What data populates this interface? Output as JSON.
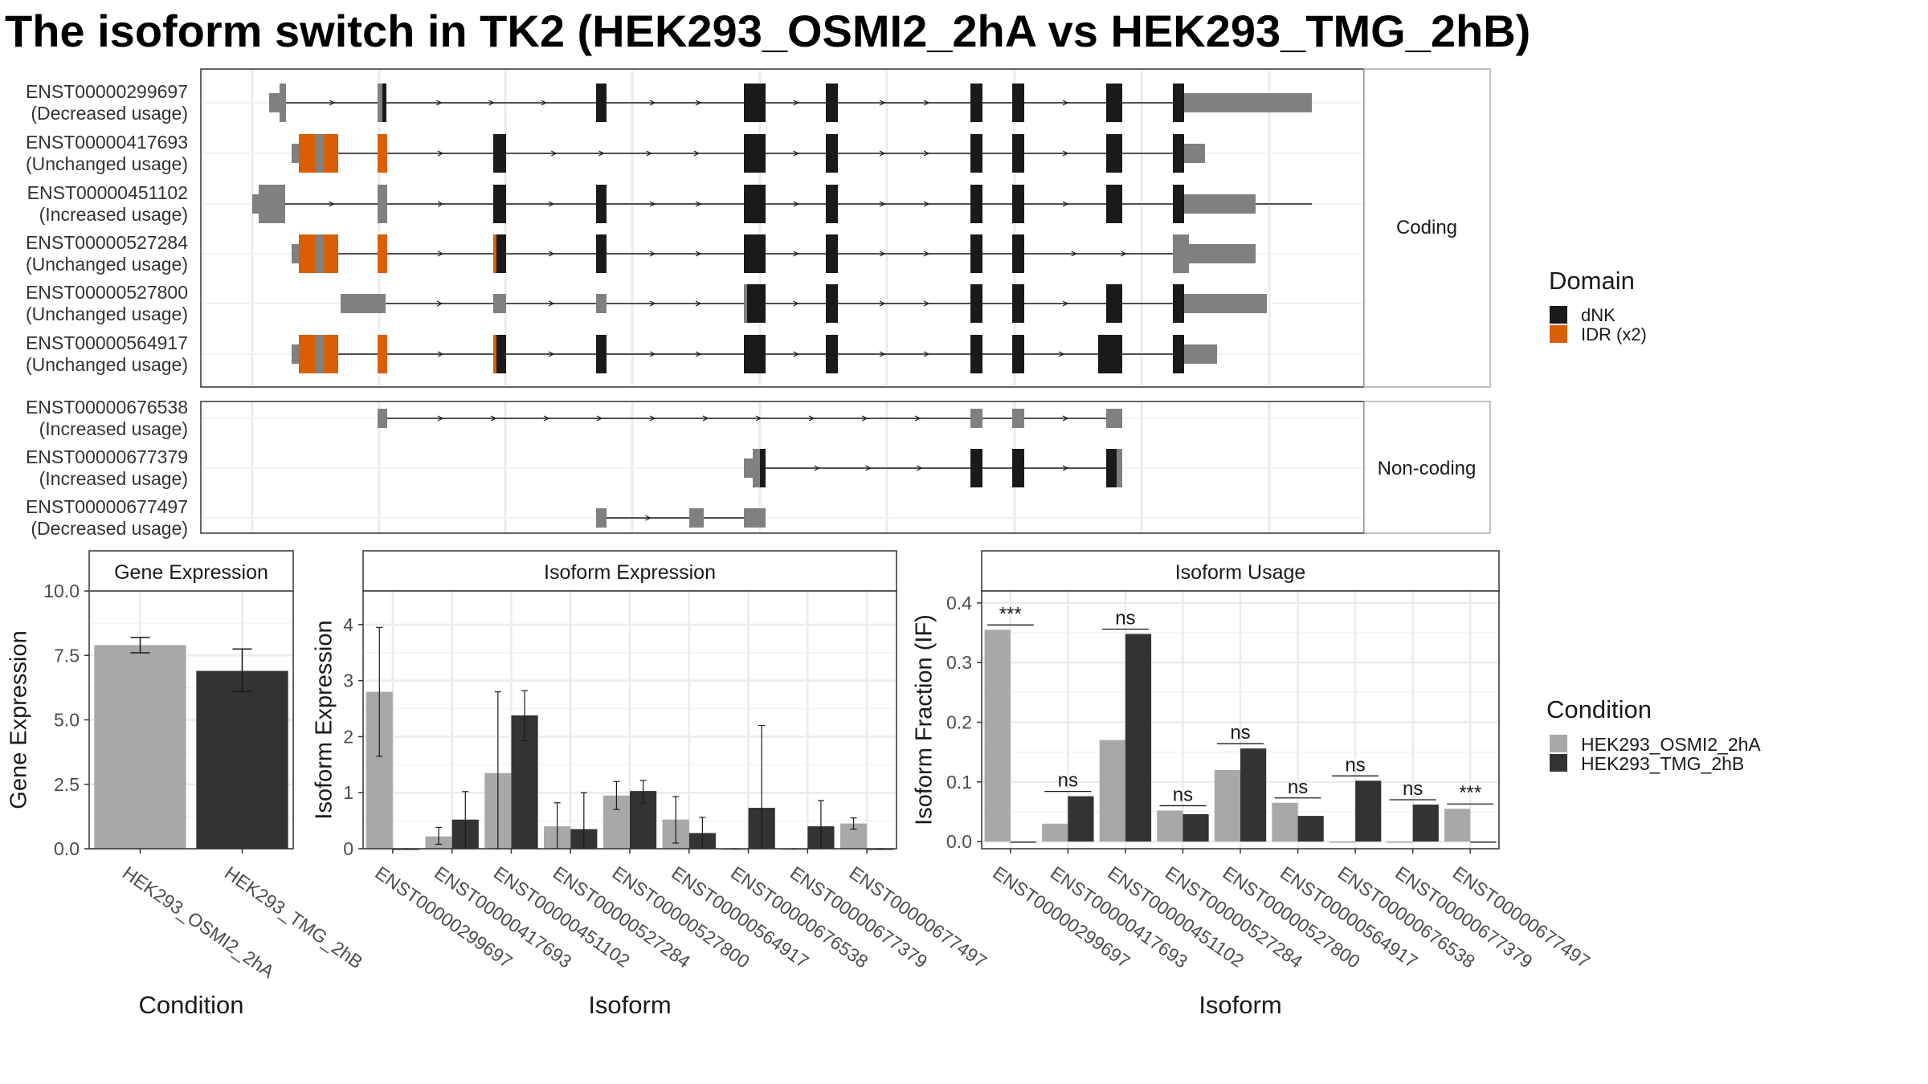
{
  "title": "The isoform switch in TK2 (HEK293_OSMI2_2hA vs HEK293_TMG_2hB)",
  "colors": {
    "exon": "#808080",
    "dNK": "#1a1a1a",
    "IDR": "#d95f02",
    "cond_a": "#a8a8a8",
    "cond_b": "#333333",
    "panel_border": "#333333",
    "grid": "#ebebeb",
    "strip_bg": "#ffffff"
  },
  "structure": {
    "panels": [
      {
        "strip": "Coding",
        "isoforms": [
          {
            "id": "ENST00000299697",
            "status": "(Decreased usage)"
          },
          {
            "id": "ENST00000417693",
            "status": "(Unchanged usage)"
          },
          {
            "id": "ENST00000451102",
            "status": "(Increased usage)"
          },
          {
            "id": "ENST00000527284",
            "status": "(Unchanged usage)"
          },
          {
            "id": "ENST00000527800",
            "status": "(Unchanged usage)"
          },
          {
            "id": "ENST00000564917",
            "status": "(Unchanged usage)"
          }
        ]
      },
      {
        "strip": "Non-coding",
        "isoforms": [
          {
            "id": "ENST00000676538",
            "status": "(Increased usage)"
          },
          {
            "id": "ENST00000677379",
            "status": "(Increased usage)"
          },
          {
            "id": "ENST00000677497",
            "status": "(Decreased usage)"
          }
        ]
      }
    ],
    "domain_legend": {
      "title": "Domain",
      "items": [
        {
          "label": "dNK",
          "color": "#1a1a1a"
        },
        {
          "label": "IDR (x2)",
          "color": "#d95f02"
        }
      ]
    }
  },
  "condition_legend": {
    "title": "Condition",
    "items": [
      {
        "label": "HEK293_OSMI2_2hA",
        "color": "#a8a8a8"
      },
      {
        "label": "HEK293_TMG_2hB",
        "color": "#333333"
      }
    ]
  },
  "chart_data": [
    {
      "type": "bar",
      "title": "Gene Expression",
      "xlabel": "Condition",
      "ylabel": "Gene Expression",
      "ylim": [
        0,
        10
      ],
      "yticks": [
        "0.0",
        "2.5",
        "5.0",
        "7.5",
        "10.0"
      ],
      "categories": [
        "HEK293_OSMI2_2hA",
        "HEK293_TMG_2hB"
      ],
      "values": [
        7.9,
        6.9
      ],
      "errors": [
        [
          7.6,
          8.2
        ],
        [
          6.1,
          7.75
        ]
      ]
    },
    {
      "type": "bar",
      "title": "Isoform Expression",
      "xlabel": "Isoform",
      "ylabel": "Isoform Expression",
      "ylim": [
        0,
        4.6
      ],
      "yticks": [
        "0",
        "1",
        "2",
        "3",
        "4"
      ],
      "categories": [
        "ENST00000299697",
        "ENST00000417693",
        "ENST00000451102",
        "ENST00000527284",
        "ENST00000527800",
        "ENST00000564917",
        "ENST00000676538",
        "ENST00000677379",
        "ENST00000677497"
      ],
      "series": [
        {
          "name": "HEK293_OSMI2_2hA",
          "values": [
            2.8,
            0.22,
            1.35,
            0.4,
            0.95,
            0.52,
            0,
            0,
            0.45
          ],
          "errors": [
            [
              1.65,
              3.95
            ],
            [
              0.08,
              0.38
            ],
            [
              0,
              2.8
            ],
            [
              0,
              0.82
            ],
            [
              0.7,
              1.2
            ],
            [
              0.1,
              0.93
            ],
            [
              0,
              0
            ],
            [
              0,
              0
            ],
            [
              0.35,
              0.55
            ]
          ]
        },
        {
          "name": "HEK293_TMG_2hB",
          "values": [
            0,
            0.52,
            2.38,
            0.35,
            1.03,
            0.28,
            0.73,
            0.4,
            0
          ],
          "errors": [
            [
              0,
              0
            ],
            [
              0,
              1.02
            ],
            [
              1.93,
              2.82
            ],
            [
              0,
              1.0
            ],
            [
              0.82,
              1.22
            ],
            [
              0,
              0.56
            ],
            [
              0,
              2.2
            ],
            [
              0,
              0.86
            ],
            [
              0,
              0
            ]
          ]
        }
      ]
    },
    {
      "type": "bar",
      "title": "Isoform Usage",
      "xlabel": "Isoform",
      "ylabel": "Isoform Fraction (IF)",
      "ylim": [
        -0.012,
        0.42
      ],
      "yticks": [
        "0.0",
        "0.1",
        "0.2",
        "0.3",
        "0.4"
      ],
      "categories": [
        "ENST00000299697",
        "ENST00000417693",
        "ENST00000451102",
        "ENST00000527284",
        "ENST00000527800",
        "ENST00000564917",
        "ENST00000676538",
        "ENST00000677379",
        "ENST00000677497"
      ],
      "series": [
        {
          "name": "HEK293_OSMI2_2hA",
          "values": [
            0.355,
            0.03,
            0.17,
            0.052,
            0.12,
            0.065,
            0,
            0,
            0.055
          ]
        },
        {
          "name": "HEK293_TMG_2hB",
          "values": [
            0,
            0.076,
            0.348,
            0.046,
            0.156,
            0.043,
            0.102,
            0.062,
            0
          ]
        }
      ],
      "significance": [
        "***",
        "ns",
        "ns",
        "ns",
        "ns",
        "ns",
        "ns",
        "ns",
        "***"
      ]
    }
  ]
}
